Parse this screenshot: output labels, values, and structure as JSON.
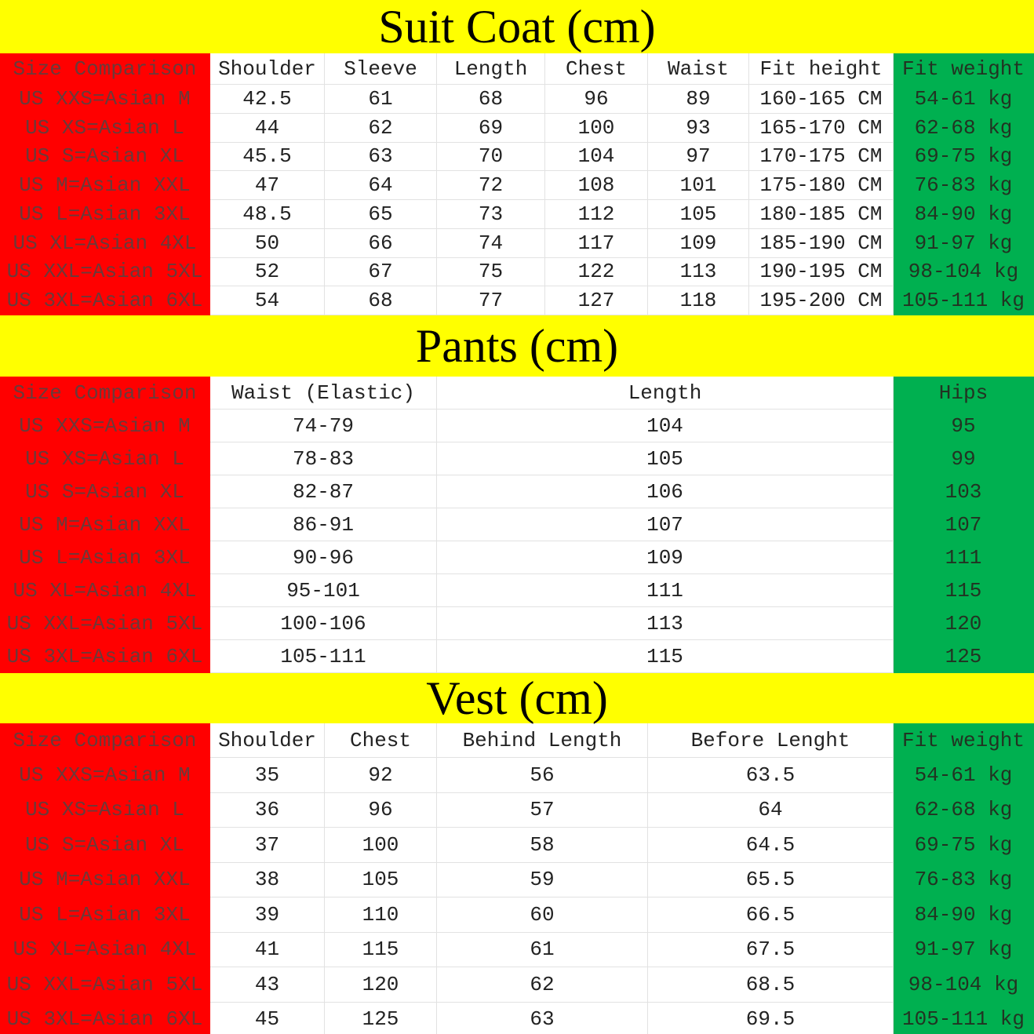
{
  "sections": [
    {
      "title": "Suit Coat (cm)",
      "header": [
        "Size Comparison",
        "Shoulder",
        "Sleeve",
        "Length",
        "Chest",
        "Waist",
        "Fit height",
        "Fit weight"
      ],
      "rows": [
        [
          "US XXS=Asian M",
          "42.5",
          "61",
          "68",
          "96",
          "89",
          "160-165 CM",
          "54-61 kg"
        ],
        [
          "US XS=Asian L",
          "44",
          "62",
          "69",
          "100",
          "93",
          "165-170 CM",
          "62-68 kg"
        ],
        [
          "US S=Asian XL",
          "45.5",
          "63",
          "70",
          "104",
          "97",
          "170-175 CM",
          "69-75 kg"
        ],
        [
          "US M=Asian XXL",
          "47",
          "64",
          "72",
          "108",
          "101",
          "175-180 CM",
          "76-83 kg"
        ],
        [
          "US L=Asian 3XL",
          "48.5",
          "65",
          "73",
          "112",
          "105",
          "180-185 CM",
          "84-90 kg"
        ],
        [
          "US XL=Asian 4XL",
          "50",
          "66",
          "74",
          "117",
          "109",
          "185-190 CM",
          "91-97 kg"
        ],
        [
          "US XXL=Asian 5XL",
          "52",
          "67",
          "75",
          "122",
          "113",
          "190-195 CM",
          "98-104 kg"
        ],
        [
          "US 3XL=Asian 6XL",
          "54",
          "68",
          "77",
          "127",
          "118",
          "195-200 CM",
          "105-111 kg"
        ]
      ]
    },
    {
      "title": "Pants (cm)",
      "header": [
        "Size Comparison",
        "Waist (Elastic)",
        "Length",
        "Hips"
      ],
      "rows": [
        [
          "US XXS=Asian M",
          "74-79",
          "104",
          "95"
        ],
        [
          "US XS=Asian L",
          "78-83",
          "105",
          "99"
        ],
        [
          "US S=Asian XL",
          "82-87",
          "106",
          "103"
        ],
        [
          "US M=Asian XXL",
          "86-91",
          "107",
          "107"
        ],
        [
          "US L=Asian 3XL",
          "90-96",
          "109",
          "111"
        ],
        [
          "US XL=Asian 4XL",
          "95-101",
          "111",
          "115"
        ],
        [
          "US XXL=Asian 5XL",
          "100-106",
          "113",
          "120"
        ],
        [
          "US 3XL=Asian 6XL",
          "105-111",
          "115",
          "125"
        ]
      ]
    },
    {
      "title": "Vest (cm)",
      "header": [
        "Size Comparison",
        "Shoulder",
        "Chest",
        "Behind Length",
        "Before Lenght",
        "Fit weight"
      ],
      "rows": [
        [
          "US XXS=Asian M",
          "35",
          "92",
          "56",
          "63.5",
          "54-61 kg"
        ],
        [
          "US XS=Asian L",
          "36",
          "96",
          "57",
          "64",
          "62-68 kg"
        ],
        [
          "US S=Asian XL",
          "37",
          "100",
          "58",
          "64.5",
          "69-75 kg"
        ],
        [
          "US M=Asian XXL",
          "38",
          "105",
          "59",
          "65.5",
          "76-83 kg"
        ],
        [
          "US L=Asian 3XL",
          "39",
          "110",
          "60",
          "66.5",
          "84-90 kg"
        ],
        [
          "US XL=Asian 4XL",
          "41",
          "115",
          "61",
          "67.5",
          "91-97 kg"
        ],
        [
          "US XXL=Asian 5XL",
          "43",
          "120",
          "62",
          "68.5",
          "98-104 kg"
        ],
        [
          "US 3XL=Asian 6XL",
          "45",
          "125",
          "63",
          "69.5",
          "105-111 kg"
        ]
      ]
    }
  ]
}
